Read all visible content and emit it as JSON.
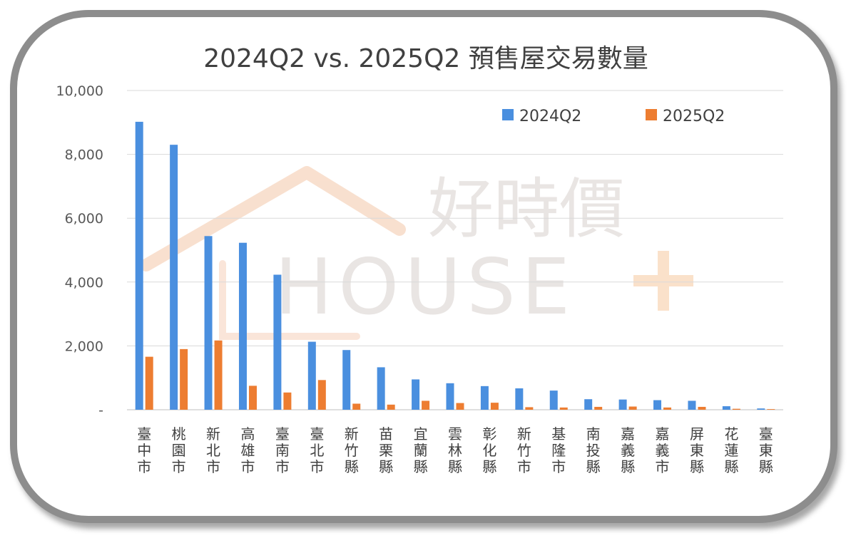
{
  "chart_data": {
    "type": "bar",
    "title": "2024Q2 vs. 2025Q2 預售屋交易數量",
    "categories": [
      "臺中市",
      "桃園市",
      "新北市",
      "高雄市",
      "臺南市",
      "臺北市",
      "新竹縣",
      "苗栗縣",
      "宜蘭縣",
      "雲林縣",
      "彰化縣",
      "新竹市",
      "基隆市",
      "南投縣",
      "嘉義縣",
      "嘉義市",
      "屏東縣",
      "花蓮縣",
      "臺東縣"
    ],
    "series": [
      {
        "name": "2024Q2",
        "color": "#4a8fdf",
        "values": [
          9020,
          8300,
          5440,
          5230,
          4230,
          2130,
          1870,
          1330,
          950,
          830,
          740,
          670,
          600,
          330,
          320,
          300,
          280,
          110,
          40
        ]
      },
      {
        "name": "2025Q2",
        "color": "#ed7d31",
        "values": [
          1660,
          1900,
          2170,
          750,
          540,
          930,
          190,
          160,
          280,
          210,
          220,
          80,
          70,
          90,
          100,
          70,
          90,
          30,
          20
        ]
      }
    ],
    "ylim": [
      0,
      10000
    ],
    "yticks": [
      "-",
      "2,000",
      "4,000",
      "6,000",
      "8,000",
      "10,000"
    ],
    "grid": true,
    "legend_position": "top-right"
  },
  "watermark": {
    "brand_cn": "好時價",
    "brand_en": "HOUSE"
  }
}
